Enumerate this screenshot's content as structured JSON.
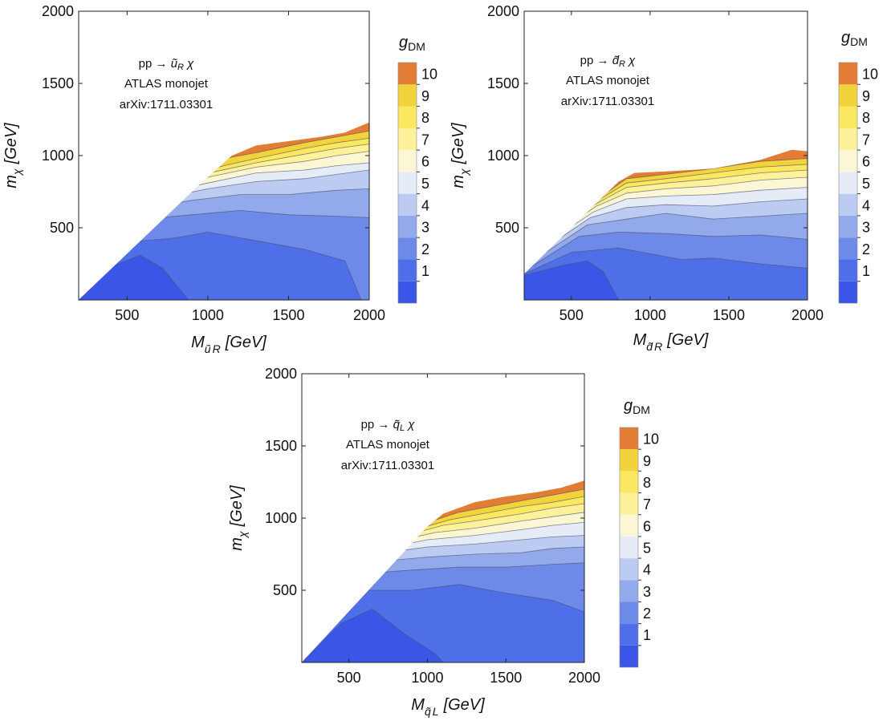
{
  "chart_data": [
    {
      "type": "heatmap",
      "subtype": "filled-contour",
      "annotation": {
        "process": "pp →",
        "particle": "ũ",
        "particle_sub": "R",
        "final": "χ",
        "line2": "ATLAS monojet",
        "line3": "arXiv:1711.03301"
      },
      "xlabel": {
        "main": "M",
        "sub1": "ũ",
        "sub2": "R",
        "unit": "[GeV]"
      },
      "ylabel": {
        "main": "m",
        "sub": "χ",
        "unit": "[GeV]"
      },
      "xlim": [
        200,
        2000
      ],
      "ylim": [
        0,
        2000
      ],
      "x_ticks": [
        500,
        1000,
        1500,
        2000
      ],
      "y_ticks": [
        500,
        1000,
        1500,
        2000
      ],
      "x_tick_labels": [
        "500",
        "1000",
        "1500",
        "2000"
      ],
      "y_tick_labels": [
        "500",
        "1000",
        "1500",
        "2000"
      ],
      "legend": {
        "title": "g",
        "title_sub": "DM",
        "levels": [
          "1",
          "2",
          "3",
          "4",
          "5",
          "6",
          "7",
          "8",
          "9",
          "10"
        ]
      },
      "contours": [
        {
          "level": 1,
          "x": [
            200,
            400,
            580,
            720,
            880
          ],
          "y": [
            0,
            230,
            310,
            220,
            0
          ]
        },
        {
          "level": 2,
          "x": [
            200,
            500,
            800,
            1000,
            1300,
            1600,
            1850,
            1950
          ],
          "y": [
            0,
            400,
            430,
            470,
            410,
            350,
            270,
            0
          ]
        },
        {
          "level": 3,
          "x": [
            200,
            600,
            900,
            1200,
            1500,
            1800,
            2000
          ],
          "y": [
            0,
            560,
            590,
            620,
            590,
            580,
            570
          ]
        },
        {
          "level": 4,
          "x": [
            200,
            650,
            900,
            1200,
            1500,
            1800,
            2000
          ],
          "y": [
            0,
            640,
            690,
            730,
            730,
            760,
            770
          ]
        },
        {
          "level": 5,
          "x": [
            200,
            700,
            1000,
            1300,
            1600,
            1800,
            2000
          ],
          "y": [
            0,
            700,
            770,
            820,
            840,
            870,
            900
          ]
        },
        {
          "level": 6,
          "x": [
            200,
            720,
            1000,
            1300,
            1600,
            1800,
            2000
          ],
          "y": [
            0,
            740,
            810,
            880,
            900,
            930,
            950
          ]
        },
        {
          "level": 7,
          "x": [
            200,
            740,
            1000,
            1300,
            1600,
            1800,
            2000
          ],
          "y": [
            0,
            770,
            850,
            920,
            960,
            1000,
            1030
          ]
        },
        {
          "level": 8,
          "x": [
            200,
            760,
            1050,
            1300,
            1600,
            1800,
            2000
          ],
          "y": [
            0,
            800,
            890,
            950,
            1010,
            1050,
            1080
          ]
        },
        {
          "level": 9,
          "x": [
            200,
            780,
            1100,
            1300,
            1600,
            1800,
            2000
          ],
          "y": [
            0,
            830,
            930,
            980,
            1050,
            1090,
            1120
          ]
        },
        {
          "level": 10,
          "x": [
            200,
            800,
            1150,
            1300,
            1600,
            1800,
            2000
          ],
          "y": [
            0,
            850,
            990,
            1020,
            1090,
            1130,
            1170
          ]
        }
      ],
      "upper_edge": {
        "x": [
          200,
          950,
          1150,
          1300,
          1500,
          1700,
          1850,
          2000
        ],
        "y": [
          0,
          800,
          1000,
          1070,
          1100,
          1130,
          1160,
          1230
        ]
      }
    },
    {
      "type": "heatmap",
      "subtype": "filled-contour",
      "annotation": {
        "process": "pp →",
        "particle": "d̃",
        "particle_sub": "R",
        "final": "χ",
        "line2": "ATLAS monojet",
        "line3": "arXiv:1711.03301"
      },
      "xlabel": {
        "main": "M",
        "sub1": "d̃",
        "sub2": "R",
        "unit": "[GeV]"
      },
      "ylabel": {
        "main": "m",
        "sub": "χ",
        "unit": "[GeV]"
      },
      "xlim": [
        200,
        2000
      ],
      "ylim": [
        0,
        2000
      ],
      "x_ticks": [
        500,
        1000,
        1500,
        2000
      ],
      "y_ticks": [
        500,
        1000,
        1500,
        2000
      ],
      "x_tick_labels": [
        "500",
        "1000",
        "1500",
        "2000"
      ],
      "y_tick_labels": [
        "500",
        "1000",
        "1500",
        "2000"
      ],
      "legend": {
        "title": "g",
        "title_sub": "DM",
        "levels": [
          "1",
          "2",
          "3",
          "4",
          "5",
          "6",
          "7",
          "8",
          "9",
          "10"
        ]
      },
      "contours": [
        {
          "level": 1,
          "x": [
            200,
            450,
            600,
            700,
            800
          ],
          "y": [
            170,
            240,
            270,
            200,
            0
          ]
        },
        {
          "level": 2,
          "x": [
            200,
            500,
            800,
            1000,
            1200,
            1400,
            1700,
            2000
          ],
          "y": [
            180,
            330,
            360,
            320,
            280,
            290,
            250,
            220
          ]
        },
        {
          "level": 3,
          "x": [
            200,
            550,
            800,
            1100,
            1400,
            1700,
            2000
          ],
          "y": [
            200,
            440,
            470,
            460,
            440,
            450,
            420
          ]
        },
        {
          "level": 4,
          "x": [
            200,
            600,
            850,
            1100,
            1400,
            1700,
            2000
          ],
          "y": [
            230,
            520,
            560,
            600,
            560,
            580,
            600
          ]
        },
        {
          "level": 5,
          "x": [
            200,
            620,
            850,
            1100,
            1400,
            1700,
            2000
          ],
          "y": [
            260,
            570,
            640,
            660,
            650,
            680,
            700
          ]
        },
        {
          "level": 6,
          "x": [
            200,
            640,
            850,
            1100,
            1400,
            1700,
            2000
          ],
          "y": [
            290,
            610,
            700,
            720,
            730,
            760,
            780
          ]
        },
        {
          "level": 7,
          "x": [
            200,
            660,
            850,
            1100,
            1400,
            1700,
            2000
          ],
          "y": [
            320,
            650,
            740,
            770,
            790,
            830,
            850
          ]
        },
        {
          "level": 8,
          "x": [
            200,
            680,
            850,
            1100,
            1400,
            1700,
            2000
          ],
          "y": [
            350,
            680,
            780,
            810,
            840,
            880,
            900
          ]
        },
        {
          "level": 9,
          "x": [
            200,
            700,
            850,
            1100,
            1400,
            1700,
            2000
          ],
          "y": [
            380,
            710,
            810,
            840,
            880,
            920,
            940
          ]
        },
        {
          "level": 10,
          "x": [
            200,
            720,
            850,
            1100,
            1400,
            1700,
            2000
          ],
          "y": [
            410,
            740,
            840,
            870,
            910,
            960,
            980
          ]
        }
      ],
      "upper_edge": {
        "x": [
          200,
          800,
          900,
          1100,
          1400,
          1700,
          1900,
          2000
        ],
        "y": [
          180,
          820,
          880,
          890,
          910,
          970,
          1040,
          1030
        ]
      }
    },
    {
      "type": "heatmap",
      "subtype": "filled-contour",
      "annotation": {
        "process": "pp →",
        "particle": "q̃",
        "particle_sub": "L",
        "final": "χ",
        "line2": "ATLAS monojet",
        "line3": "arXiv:1711.03301"
      },
      "xlabel": {
        "main": "M",
        "sub1": "q̃",
        "sub2": "L",
        "unit": "[GeV]"
      },
      "ylabel": {
        "main": "m",
        "sub": "χ",
        "unit": "[GeV]"
      },
      "xlim": [
        200,
        2000
      ],
      "ylim": [
        0,
        2000
      ],
      "x_ticks": [
        500,
        1000,
        1500,
        2000
      ],
      "y_ticks": [
        500,
        1000,
        1500,
        2000
      ],
      "x_tick_labels": [
        "500",
        "1000",
        "1500",
        "2000"
      ],
      "y_tick_labels": [
        "500",
        "1000",
        "1500",
        "2000"
      ],
      "legend": {
        "title": "g",
        "title_sub": "DM",
        "levels": [
          "1",
          "2",
          "3",
          "4",
          "5",
          "6",
          "7",
          "8",
          "9",
          "10"
        ]
      },
      "contours": [
        {
          "level": 1,
          "x": [
            200,
            450,
            650,
            850,
            1050,
            1100
          ],
          "y": [
            0,
            270,
            370,
            200,
            60,
            0
          ]
        },
        {
          "level": 2,
          "x": [
            200,
            600,
            900,
            1200,
            1500,
            1800,
            2000
          ],
          "y": [
            0,
            500,
            500,
            540,
            480,
            430,
            350
          ]
        },
        {
          "level": 3,
          "x": [
            200,
            650,
            900,
            1200,
            1500,
            1800,
            2000
          ],
          "y": [
            0,
            620,
            640,
            660,
            660,
            680,
            690
          ]
        },
        {
          "level": 4,
          "x": [
            200,
            700,
            1000,
            1300,
            1600,
            1800,
            2000
          ],
          "y": [
            0,
            700,
            730,
            750,
            760,
            790,
            800
          ]
        },
        {
          "level": 5,
          "x": [
            200,
            740,
            1000,
            1300,
            1600,
            1800,
            2000
          ],
          "y": [
            0,
            760,
            800,
            820,
            850,
            870,
            880
          ]
        },
        {
          "level": 6,
          "x": [
            200,
            770,
            1000,
            1300,
            1600,
            1800,
            2000
          ],
          "y": [
            0,
            800,
            850,
            880,
            920,
            950,
            970
          ]
        },
        {
          "level": 7,
          "x": [
            200,
            800,
            1050,
            1300,
            1600,
            1800,
            2000
          ],
          "y": [
            0,
            840,
            900,
            930,
            980,
            1010,
            1040
          ]
        },
        {
          "level": 8,
          "x": [
            200,
            830,
            1100,
            1300,
            1600,
            1800,
            2000
          ],
          "y": [
            0,
            870,
            950,
            980,
            1030,
            1070,
            1100
          ]
        },
        {
          "level": 9,
          "x": [
            200,
            860,
            1150,
            1350,
            1600,
            1800,
            2000
          ],
          "y": [
            0,
            900,
            990,
            1030,
            1080,
            1110,
            1150
          ]
        },
        {
          "level": 10,
          "x": [
            200,
            890,
            1200,
            1400,
            1600,
            1800,
            2000
          ],
          "y": [
            0,
            930,
            1040,
            1080,
            1120,
            1160,
            1200
          ]
        }
      ],
      "upper_edge": {
        "x": [
          200,
          1000,
          1100,
          1300,
          1500,
          1700,
          1850,
          2000
        ],
        "y": [
          0,
          940,
          1030,
          1110,
          1150,
          1180,
          1210,
          1260
        ]
      }
    }
  ],
  "colors": {
    "levels": [
      "#3b55e6",
      "#4f6fe8",
      "#6d8ae8",
      "#92a9ec",
      "#bccbf2",
      "#e6ecf7",
      "#fbf6d4",
      "#fdf29a",
      "#fae860",
      "#f3d33c"
    ],
    "top": "#e37d35"
  }
}
